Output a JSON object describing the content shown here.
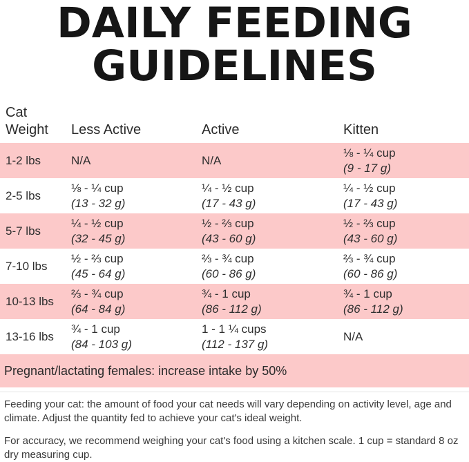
{
  "title": {
    "line1": "DAILY FEEDING",
    "line2": "GUIDELINES"
  },
  "table": {
    "headers": [
      "Cat Weight",
      "Less Active",
      "Active",
      "Kitten"
    ],
    "rows": [
      {
        "weight": "1-2 lbs",
        "less_active": {
          "amount": "N/A",
          "grams": ""
        },
        "active": {
          "amount": "N/A",
          "grams": ""
        },
        "kitten": {
          "amount": "⅛ - ¼ cup",
          "grams": "(9 - 17 g)"
        }
      },
      {
        "weight": "2-5 lbs",
        "less_active": {
          "amount": "⅛ - ¼ cup",
          "grams": "(13 - 32 g)"
        },
        "active": {
          "amount": "¼ - ½ cup",
          "grams": "(17 - 43 g)"
        },
        "kitten": {
          "amount": "¼ - ½ cup",
          "grams": "(17 - 43 g)"
        }
      },
      {
        "weight": "5-7 lbs",
        "less_active": {
          "amount": "¼ - ½ cup",
          "grams": "(32 - 45 g)"
        },
        "active": {
          "amount": "½ - ⅔ cup",
          "grams": "(43 - 60 g)"
        },
        "kitten": {
          "amount": "½ - ⅔ cup",
          "grams": "(43 - 60 g)"
        }
      },
      {
        "weight": "7-10 lbs",
        "less_active": {
          "amount": "½ - ⅔ cup",
          "grams": "(45 - 64 g)"
        },
        "active": {
          "amount": "⅔ - ¾ cup",
          "grams": "(60 - 86 g)"
        },
        "kitten": {
          "amount": "⅔ - ¾ cup",
          "grams": "(60 - 86 g)"
        }
      },
      {
        "weight": "10-13 lbs",
        "less_active": {
          "amount": "⅔ - ¾ cup",
          "grams": "(64 - 84 g)"
        },
        "active": {
          "amount": "¾ - 1 cup",
          "grams": "(86 - 112 g)"
        },
        "kitten": {
          "amount": "¾ - 1 cup",
          "grams": "(86 - 112 g)"
        }
      },
      {
        "weight": "13-16 lbs",
        "less_active": {
          "amount": "¾ - 1 cup",
          "grams": "(84 - 103 g)"
        },
        "active": {
          "amount": "1 - 1 ¼ cups",
          "grams": "(112 - 137 g)"
        },
        "kitten": {
          "amount": "N/A",
          "grams": ""
        }
      }
    ]
  },
  "note": "Pregnant/lactating females: increase intake by 50%",
  "footer": {
    "paragraph1": "Feeding your cat: the amount of food your cat needs will vary depending on activity level, age and climate. Adjust the quantity fed to achieve your cat's ideal weight.",
    "paragraph2": "For accuracy, we recommend weighing your cat's food using a kitchen scale. 1 cup = standard 8 oz dry measuring cup."
  },
  "colors": {
    "row_highlight_pink": "#fcc9c9",
    "title_black": "#161616",
    "body_text": "#2e2e2e"
  }
}
